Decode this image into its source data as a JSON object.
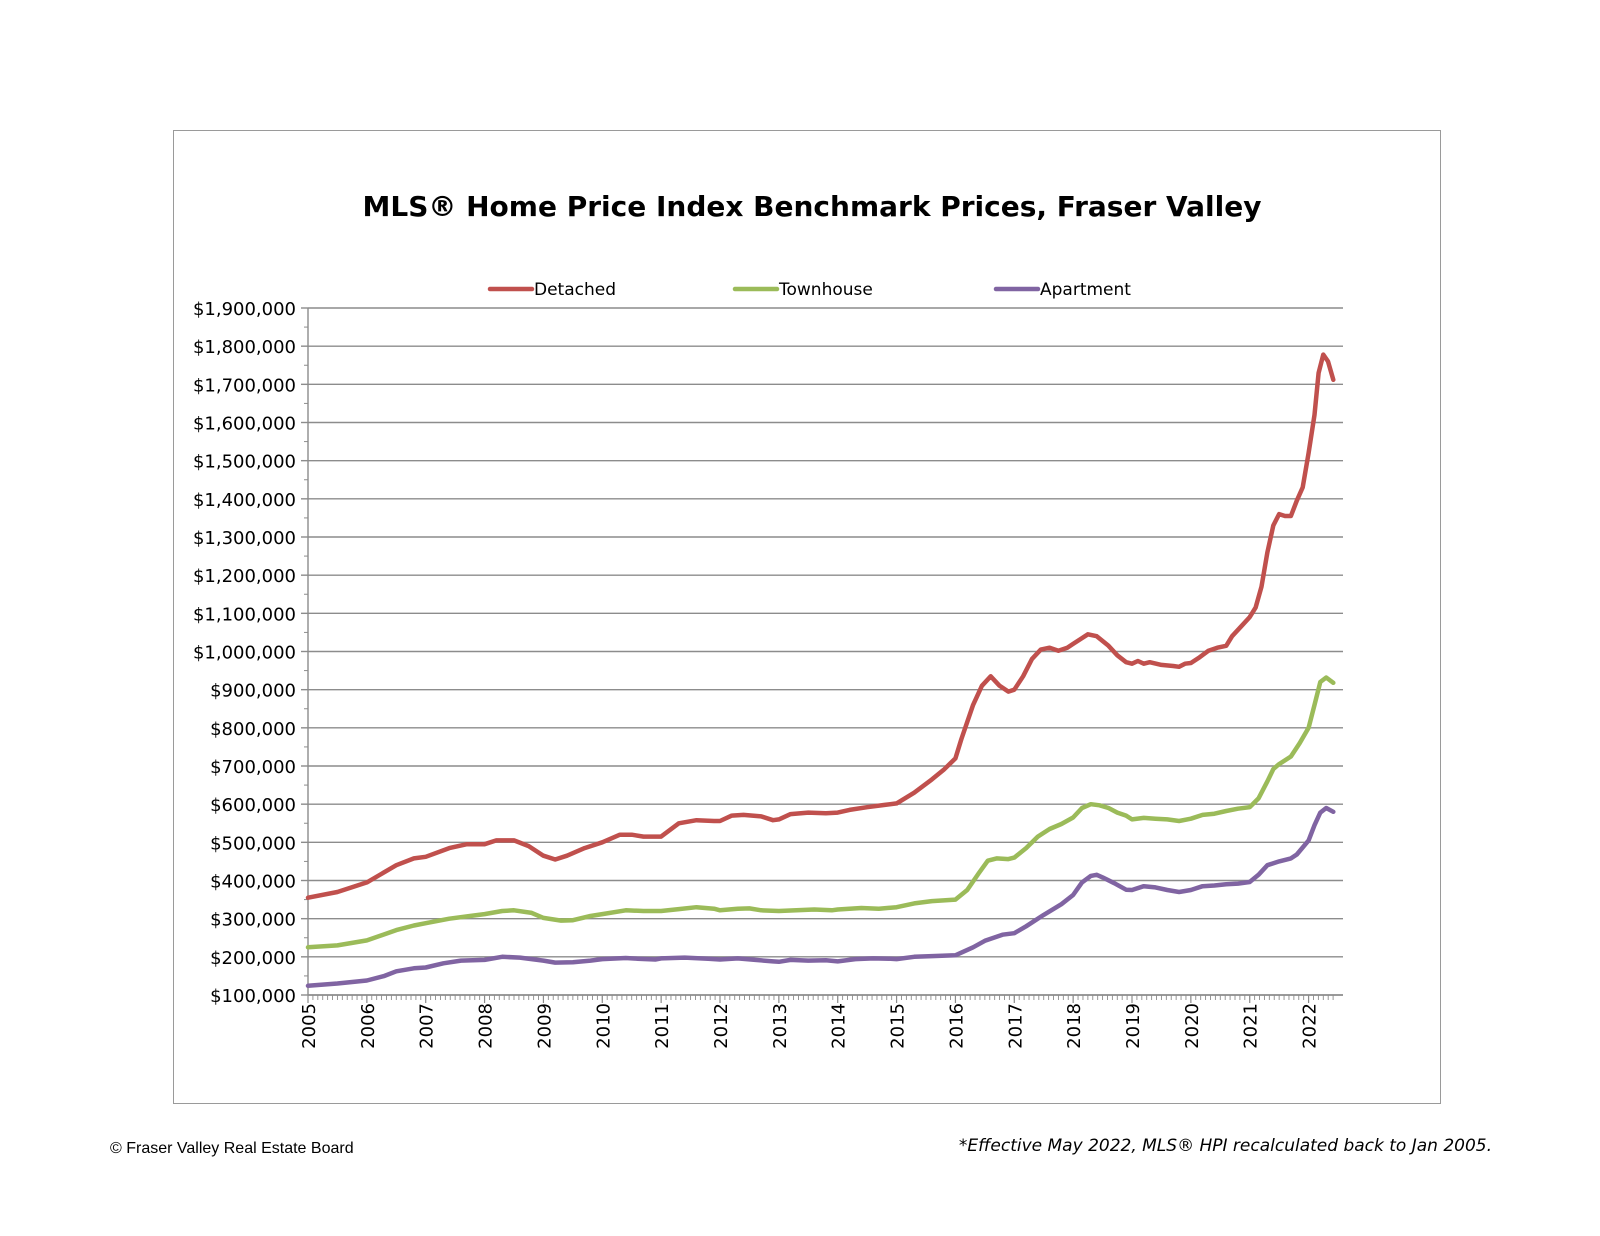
{
  "footer": {
    "copyright": "© Fraser Valley Real Estate Board",
    "note": "*Effective May 2022, MLS® HPI recalculated back to Jan 2005."
  },
  "chart_data": {
    "type": "line",
    "title": "MLS® Home Price Index Benchmark Prices, Fraser Valley",
    "xlabel": "",
    "ylabel": "",
    "ylim": [
      100000,
      1900000
    ],
    "xlim": [
      2005.0,
      2022.33
    ],
    "grid": true,
    "legend_position": "top",
    "y_ticks": [
      100000,
      200000,
      300000,
      400000,
      500000,
      600000,
      700000,
      800000,
      900000,
      1000000,
      1100000,
      1200000,
      1300000,
      1400000,
      1500000,
      1600000,
      1700000,
      1800000,
      1900000
    ],
    "y_tick_labels": [
      "$100,000",
      "$200,000",
      "$300,000",
      "$400,000",
      "$500,000",
      "$600,000",
      "$700,000",
      "$800,000",
      "$900,000",
      "$1,000,000",
      "$1,100,000",
      "$1,200,000",
      "$1,300,000",
      "$1,400,000",
      "$1,500,000",
      "$1,600,000",
      "$1,700,000",
      "$1,800,000",
      "$1,900,000"
    ],
    "x_tick_labels": [
      "2005",
      "2006",
      "2007",
      "2008",
      "2009",
      "2010",
      "2011",
      "2012",
      "2013",
      "2014",
      "2015",
      "2016",
      "2017",
      "2018",
      "2019",
      "2020",
      "2021",
      "2022"
    ],
    "series": [
      {
        "name": "Detached",
        "color": "#c0504d",
        "points": [
          [
            2005.0,
            355000
          ],
          [
            2005.5,
            370000
          ],
          [
            2006.0,
            395000
          ],
          [
            2006.5,
            440000
          ],
          [
            2006.8,
            458000
          ],
          [
            2007.0,
            462000
          ],
          [
            2007.4,
            485000
          ],
          [
            2007.7,
            495000
          ],
          [
            2008.0,
            495000
          ],
          [
            2008.2,
            505000
          ],
          [
            2008.5,
            505000
          ],
          [
            2008.75,
            490000
          ],
          [
            2009.0,
            465000
          ],
          [
            2009.2,
            455000
          ],
          [
            2009.4,
            465000
          ],
          [
            2009.7,
            485000
          ],
          [
            2010.0,
            500000
          ],
          [
            2010.3,
            520000
          ],
          [
            2010.5,
            520000
          ],
          [
            2010.7,
            515000
          ],
          [
            2011.0,
            515000
          ],
          [
            2011.3,
            550000
          ],
          [
            2011.6,
            558000
          ],
          [
            2011.9,
            556000
          ],
          [
            2012.0,
            556000
          ],
          [
            2012.2,
            570000
          ],
          [
            2012.4,
            572000
          ],
          [
            2012.7,
            568000
          ],
          [
            2012.9,
            558000
          ],
          [
            2013.0,
            560000
          ],
          [
            2013.2,
            574000
          ],
          [
            2013.5,
            578000
          ],
          [
            2013.8,
            576000
          ],
          [
            2014.0,
            578000
          ],
          [
            2014.2,
            585000
          ],
          [
            2014.5,
            592000
          ],
          [
            2014.8,
            598000
          ],
          [
            2015.0,
            602000
          ],
          [
            2015.3,
            630000
          ],
          [
            2015.6,
            665000
          ],
          [
            2015.8,
            690000
          ],
          [
            2016.0,
            720000
          ],
          [
            2016.1,
            770000
          ],
          [
            2016.3,
            860000
          ],
          [
            2016.45,
            910000
          ],
          [
            2016.6,
            935000
          ],
          [
            2016.75,
            910000
          ],
          [
            2016.9,
            895000
          ],
          [
            2017.0,
            900000
          ],
          [
            2017.15,
            935000
          ],
          [
            2017.3,
            980000
          ],
          [
            2017.45,
            1005000
          ],
          [
            2017.6,
            1010000
          ],
          [
            2017.75,
            1002000
          ],
          [
            2017.9,
            1010000
          ],
          [
            2018.0,
            1020000
          ],
          [
            2018.15,
            1035000
          ],
          [
            2018.25,
            1045000
          ],
          [
            2018.4,
            1040000
          ],
          [
            2018.6,
            1015000
          ],
          [
            2018.75,
            990000
          ],
          [
            2018.9,
            972000
          ],
          [
            2019.0,
            968000
          ],
          [
            2019.1,
            975000
          ],
          [
            2019.2,
            968000
          ],
          [
            2019.3,
            972000
          ],
          [
            2019.5,
            965000
          ],
          [
            2019.7,
            962000
          ],
          [
            2019.8,
            960000
          ],
          [
            2019.9,
            968000
          ],
          [
            2020.0,
            970000
          ],
          [
            2020.15,
            985000
          ],
          [
            2020.3,
            1002000
          ],
          [
            2020.45,
            1010000
          ],
          [
            2020.6,
            1015000
          ],
          [
            2020.7,
            1040000
          ],
          [
            2020.85,
            1065000
          ],
          [
            2021.0,
            1090000
          ],
          [
            2021.1,
            1115000
          ],
          [
            2021.2,
            1170000
          ],
          [
            2021.3,
            1260000
          ],
          [
            2021.4,
            1330000
          ],
          [
            2021.5,
            1360000
          ],
          [
            2021.6,
            1355000
          ],
          [
            2021.7,
            1355000
          ],
          [
            2021.8,
            1395000
          ],
          [
            2021.9,
            1430000
          ],
          [
            2022.0,
            1520000
          ],
          [
            2022.1,
            1620000
          ],
          [
            2022.17,
            1730000
          ],
          [
            2022.25,
            1778000
          ],
          [
            2022.33,
            1760000
          ],
          [
            2022.42,
            1712000
          ]
        ]
      },
      {
        "name": "Townhouse",
        "color": "#9bbb59",
        "points": [
          [
            2005.0,
            225000
          ],
          [
            2005.5,
            230000
          ],
          [
            2006.0,
            243000
          ],
          [
            2006.5,
            270000
          ],
          [
            2006.8,
            282000
          ],
          [
            2007.0,
            288000
          ],
          [
            2007.4,
            300000
          ],
          [
            2007.8,
            308000
          ],
          [
            2008.0,
            312000
          ],
          [
            2008.3,
            320000
          ],
          [
            2008.5,
            322000
          ],
          [
            2008.8,
            315000
          ],
          [
            2009.0,
            302000
          ],
          [
            2009.3,
            295000
          ],
          [
            2009.5,
            296000
          ],
          [
            2009.8,
            307000
          ],
          [
            2010.0,
            312000
          ],
          [
            2010.4,
            322000
          ],
          [
            2010.7,
            320000
          ],
          [
            2011.0,
            320000
          ],
          [
            2011.3,
            325000
          ],
          [
            2011.6,
            330000
          ],
          [
            2011.9,
            326000
          ],
          [
            2012.0,
            322000
          ],
          [
            2012.3,
            326000
          ],
          [
            2012.5,
            327000
          ],
          [
            2012.7,
            322000
          ],
          [
            2013.0,
            320000
          ],
          [
            2013.3,
            322000
          ],
          [
            2013.6,
            324000
          ],
          [
            2013.9,
            322000
          ],
          [
            2014.0,
            324000
          ],
          [
            2014.4,
            328000
          ],
          [
            2014.7,
            326000
          ],
          [
            2015.0,
            330000
          ],
          [
            2015.3,
            340000
          ],
          [
            2015.6,
            346000
          ],
          [
            2016.0,
            350000
          ],
          [
            2016.2,
            375000
          ],
          [
            2016.4,
            420000
          ],
          [
            2016.55,
            452000
          ],
          [
            2016.7,
            458000
          ],
          [
            2016.9,
            456000
          ],
          [
            2017.0,
            460000
          ],
          [
            2017.2,
            485000
          ],
          [
            2017.4,
            515000
          ],
          [
            2017.6,
            535000
          ],
          [
            2017.8,
            548000
          ],
          [
            2018.0,
            565000
          ],
          [
            2018.15,
            590000
          ],
          [
            2018.3,
            600000
          ],
          [
            2018.45,
            597000
          ],
          [
            2018.6,
            590000
          ],
          [
            2018.75,
            578000
          ],
          [
            2018.9,
            570000
          ],
          [
            2019.0,
            560000
          ],
          [
            2019.2,
            564000
          ],
          [
            2019.4,
            562000
          ],
          [
            2019.6,
            560000
          ],
          [
            2019.8,
            556000
          ],
          [
            2020.0,
            562000
          ],
          [
            2020.2,
            572000
          ],
          [
            2020.4,
            575000
          ],
          [
            2020.6,
            582000
          ],
          [
            2020.8,
            588000
          ],
          [
            2021.0,
            592000
          ],
          [
            2021.15,
            615000
          ],
          [
            2021.3,
            660000
          ],
          [
            2021.4,
            692000
          ],
          [
            2021.5,
            705000
          ],
          [
            2021.7,
            725000
          ],
          [
            2021.85,
            760000
          ],
          [
            2022.0,
            800000
          ],
          [
            2022.1,
            860000
          ],
          [
            2022.2,
            920000
          ],
          [
            2022.3,
            932000
          ],
          [
            2022.42,
            918000
          ]
        ]
      },
      {
        "name": "Apartment",
        "color": "#8064a2",
        "points": [
          [
            2005.0,
            124000
          ],
          [
            2005.5,
            130000
          ],
          [
            2006.0,
            138000
          ],
          [
            2006.3,
            150000
          ],
          [
            2006.5,
            162000
          ],
          [
            2006.8,
            170000
          ],
          [
            2007.0,
            172000
          ],
          [
            2007.3,
            183000
          ],
          [
            2007.6,
            190000
          ],
          [
            2008.0,
            192000
          ],
          [
            2008.3,
            200000
          ],
          [
            2008.6,
            198000
          ],
          [
            2009.0,
            190000
          ],
          [
            2009.2,
            185000
          ],
          [
            2009.5,
            186000
          ],
          [
            2009.8,
            190000
          ],
          [
            2010.0,
            194000
          ],
          [
            2010.4,
            197000
          ],
          [
            2010.6,
            195000
          ],
          [
            2010.9,
            193000
          ],
          [
            2011.0,
            196000
          ],
          [
            2011.4,
            198000
          ],
          [
            2011.8,
            195000
          ],
          [
            2012.0,
            193000
          ],
          [
            2012.3,
            196000
          ],
          [
            2012.6,
            192000
          ],
          [
            2012.9,
            188000
          ],
          [
            2013.0,
            187000
          ],
          [
            2013.2,
            192000
          ],
          [
            2013.5,
            190000
          ],
          [
            2013.8,
            191000
          ],
          [
            2014.0,
            188000
          ],
          [
            2014.3,
            194000
          ],
          [
            2014.6,
            196000
          ],
          [
            2014.9,
            195000
          ],
          [
            2015.0,
            194000
          ],
          [
            2015.3,
            200000
          ],
          [
            2015.6,
            202000
          ],
          [
            2016.0,
            204000
          ],
          [
            2016.3,
            225000
          ],
          [
            2016.5,
            242000
          ],
          [
            2016.8,
            258000
          ],
          [
            2017.0,
            262000
          ],
          [
            2017.2,
            280000
          ],
          [
            2017.5,
            310000
          ],
          [
            2017.8,
            338000
          ],
          [
            2018.0,
            362000
          ],
          [
            2018.15,
            395000
          ],
          [
            2018.3,
            412000
          ],
          [
            2018.4,
            415000
          ],
          [
            2018.5,
            408000
          ],
          [
            2018.7,
            393000
          ],
          [
            2018.9,
            376000
          ],
          [
            2019.0,
            375000
          ],
          [
            2019.2,
            385000
          ],
          [
            2019.4,
            382000
          ],
          [
            2019.6,
            375000
          ],
          [
            2019.8,
            370000
          ],
          [
            2020.0,
            375000
          ],
          [
            2020.2,
            385000
          ],
          [
            2020.4,
            387000
          ],
          [
            2020.6,
            390000
          ],
          [
            2020.8,
            392000
          ],
          [
            2021.0,
            396000
          ],
          [
            2021.15,
            415000
          ],
          [
            2021.3,
            440000
          ],
          [
            2021.5,
            450000
          ],
          [
            2021.7,
            458000
          ],
          [
            2021.8,
            468000
          ],
          [
            2022.0,
            505000
          ],
          [
            2022.1,
            545000
          ],
          [
            2022.2,
            578000
          ],
          [
            2022.3,
            590000
          ],
          [
            2022.42,
            580000
          ]
        ]
      }
    ]
  }
}
